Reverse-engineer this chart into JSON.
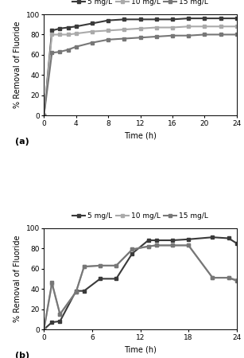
{
  "panel_a": {
    "series": [
      {
        "label": "5 mg/L",
        "color": "#3a3a3a",
        "linewidth": 1.5,
        "marker": "s",
        "markersize": 2.5,
        "x": [
          0,
          1,
          2,
          3,
          4,
          6,
          8,
          10,
          12,
          14,
          16,
          18,
          20,
          22,
          24
        ],
        "y": [
          0,
          84,
          86,
          87,
          88,
          91,
          94,
          95,
          95,
          95,
          95,
          96,
          96,
          96,
          96
        ]
      },
      {
        "label": "10 mg/L",
        "color": "#aaaaaa",
        "linewidth": 1.5,
        "marker": "s",
        "markersize": 2.5,
        "x": [
          0,
          1,
          2,
          3,
          4,
          6,
          8,
          10,
          12,
          14,
          16,
          18,
          20,
          22,
          24
        ],
        "y": [
          0,
          80,
          80,
          80,
          81,
          83,
          84,
          85,
          86,
          87,
          87,
          88,
          88,
          88,
          88
        ]
      },
      {
        "label": "15 mg/L",
        "color": "#777777",
        "linewidth": 1.5,
        "marker": "s",
        "markersize": 2.5,
        "x": [
          0,
          1,
          2,
          3,
          4,
          6,
          8,
          10,
          12,
          14,
          16,
          18,
          20,
          22,
          24
        ],
        "y": [
          0,
          62,
          63,
          65,
          68,
          72,
          75,
          76,
          77,
          78,
          79,
          79,
          80,
          80,
          80
        ]
      }
    ],
    "xlabel": "Time (h)",
    "ylabel": "% Removal of Fluoride",
    "xlim": [
      0,
      24
    ],
    "ylim": [
      0,
      100
    ],
    "xticks": [
      0,
      4,
      8,
      12,
      16,
      20,
      24
    ],
    "yticks": [
      0,
      20,
      40,
      60,
      80,
      100
    ],
    "label": "(a)"
  },
  "panel_b": {
    "series": [
      {
        "label": "5 mg/L",
        "color": "#3a3a3a",
        "linewidth": 1.5,
        "marker": "s",
        "markersize": 2.5,
        "x": [
          0,
          1,
          2,
          4,
          5,
          7,
          9,
          11,
          13,
          14,
          16,
          18,
          21,
          23,
          24
        ],
        "y": [
          0,
          7,
          8,
          38,
          38,
          50,
          50,
          75,
          88,
          88,
          88,
          89,
          91,
          90,
          85
        ]
      },
      {
        "label": "10 mg/L",
        "color": "#aaaaaa",
        "linewidth": 1.5,
        "marker": "s",
        "markersize": 2.5,
        "x": [
          0,
          1,
          2,
          4,
          5,
          7,
          9,
          11,
          13,
          14,
          16,
          18,
          21,
          23,
          24
        ],
        "y": [
          0,
          45,
          15,
          37,
          62,
          63,
          63,
          79,
          82,
          83,
          83,
          83,
          51,
          51,
          49
        ]
      },
      {
        "label": "15 mg/L",
        "color": "#777777",
        "linewidth": 1.5,
        "marker": "s",
        "markersize": 2.5,
        "x": [
          0,
          1,
          2,
          4,
          5,
          7,
          9,
          11,
          13,
          14,
          16,
          18,
          21,
          23,
          24
        ],
        "y": [
          0,
          46,
          15,
          37,
          62,
          63,
          63,
          79,
          82,
          83,
          83,
          83,
          51,
          51,
          48
        ]
      }
    ],
    "xlabel": "Time (h)",
    "ylabel": "% Removal of Fluoride",
    "xlim": [
      0,
      24
    ],
    "ylim": [
      0,
      100
    ],
    "xticks": [
      0,
      6,
      12,
      18,
      24
    ],
    "yticks": [
      0,
      20,
      40,
      60,
      80,
      100
    ],
    "label": "(b)"
  },
  "background_color": "#ffffff",
  "label_fontsize": 7,
  "tick_fontsize": 6.5,
  "legend_fontsize": 6.5
}
